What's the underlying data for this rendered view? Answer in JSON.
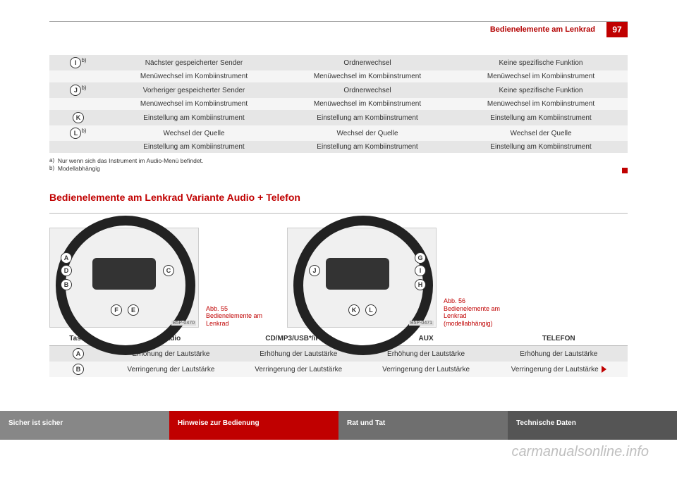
{
  "header": {
    "section": "Bedienelemente am Lenkrad",
    "page": "97"
  },
  "table1": [
    {
      "key": "I",
      "sup": "b)",
      "band": 0,
      "c1": "Nächster gespeicherter Sender",
      "c2": "Ordnerwechsel",
      "c3": "Keine spezifische Funktion"
    },
    {
      "key": "",
      "sup": "",
      "band": 1,
      "c1": "Menüwechsel im Kombiinstrument",
      "c2": "Menüwechsel im Kombiinstrument",
      "c3": "Menüwechsel im Kombiinstrument"
    },
    {
      "key": "J",
      "sup": "b)",
      "band": 0,
      "c1": "Vorheriger gespeicherter Sender",
      "c2": "Ordnerwechsel",
      "c3": "Keine spezifische Funktion"
    },
    {
      "key": "",
      "sup": "",
      "band": 1,
      "c1": "Menüwechsel im Kombiinstrument",
      "c2": "Menüwechsel im Kombiinstrument",
      "c3": "Menüwechsel im Kombiinstrument"
    },
    {
      "key": "K",
      "sup": "",
      "band": 0,
      "c1": "Einstellung am Kombiinstrument",
      "c2": "Einstellung am Kombiinstrument",
      "c3": "Einstellung am Kombiinstrument"
    },
    {
      "key": "L",
      "sup": "b)",
      "band": 1,
      "c1": "Wechsel der Quelle",
      "c2": "Wechsel der Quelle",
      "c3": "Wechsel der Quelle"
    },
    {
      "key": "",
      "sup": "",
      "band": 0,
      "c1": "Einstellung am Kombiinstrument",
      "c2": "Einstellung am Kombiinstrument",
      "c3": "Einstellung am Kombiinstrument"
    }
  ],
  "footnotes": {
    "a": {
      "mark": "a)",
      "text": "Nur wenn sich das Instrument im Audio-Menü befindet."
    },
    "b": {
      "mark": "b)",
      "text": "Modellabhängig"
    }
  },
  "section_title": "Bedienelemente am Lenkrad Variante Audio + Telefon",
  "fig55": {
    "code": "B5P-0470",
    "caption": "Abb. 55   Bedienelemente am Lenkrad",
    "labels": [
      "A",
      "B",
      "C",
      "D",
      "E",
      "F"
    ]
  },
  "fig56": {
    "code": "B5P-0471",
    "caption": "Abb. 56   Bedienelemente am Lenkrad (modellabhängig)",
    "labels": [
      "G",
      "H",
      "I",
      "J",
      "K",
      "L"
    ]
  },
  "table2": {
    "headers": [
      "Taste",
      "Radio",
      "CD/MP3/USB*/iPod*",
      "AUX",
      "TELEFON"
    ],
    "rows": [
      {
        "key": "A",
        "band": 0,
        "radio": "Erhöhung der Lautstärke",
        "cd": "Erhöhung der Lautstärke",
        "aux": "Erhöhung der Lautstärke",
        "tel": "Erhöhung der Lautstärke"
      },
      {
        "key": "B",
        "band": 1,
        "radio": "Verringerung der Lautstärke",
        "cd": "Verringerung der Lautstärke",
        "aux": "Verringerung der Lautstärke",
        "tel": "Verringerung der Lautstärke"
      }
    ]
  },
  "bottom_tabs": [
    "Sicher ist sicher",
    "Hinweise zur Bedienung",
    "Rat und Tat",
    "Technische Daten"
  ],
  "watermark": "carmanualsonline.info"
}
